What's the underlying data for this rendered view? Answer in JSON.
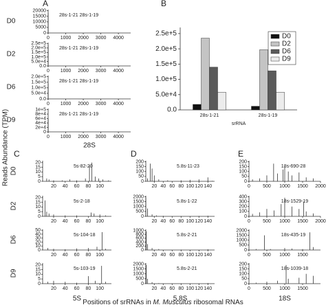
{
  "figure": {
    "y_label": "Reads Abundance (TPM)",
    "x_label_prefix": "Positions of srRNAs in ",
    "x_label_italic": "M. Musculus",
    "x_label_suffix": " ribosomal RNAs"
  },
  "rows": [
    "D0",
    "D2",
    "D6",
    "D9"
  ],
  "chart_data": [
    {
      "type": "spike",
      "panel": "A",
      "xlabel": "28S",
      "xlim": [
        0,
        4700
      ],
      "panels": [
        {
          "annotation": "28s-1-21 28s-1-19",
          "ylim": [
            0,
            21000
          ],
          "yticks": [
            0,
            5000,
            10000,
            15000,
            20000
          ],
          "xticks": [
            0,
            1000,
            2000,
            3000,
            4000
          ],
          "x": [
            1,
            2
          ],
          "values": [
            18000,
            12000
          ]
        },
        {
          "annotation": "28s-1-21 28s-1-19",
          "ylim": [
            0,
            260000
          ],
          "yticks": [
            {
              "value": 0,
              "label": "0.0"
            },
            {
              "value": 50000,
              "label": "5.0e+4"
            },
            {
              "value": 100000,
              "label": "1.0e+5"
            },
            {
              "value": 150000,
              "label": "1.5e+5"
            },
            {
              "value": 200000,
              "label": "2.0e+5"
            },
            {
              "value": 250000,
              "label": "2.5e+5"
            }
          ],
          "xticks": [
            0,
            1000,
            2000,
            3000,
            4000
          ],
          "x": [
            1,
            2
          ],
          "values": [
            235000,
            197000
          ]
        },
        {
          "annotation": "28s-1-21 28s-1-19",
          "ylim": [
            0,
            210000
          ],
          "yticks": [
            {
              "value": 0,
              "label": "0.0"
            },
            {
              "value": 50000,
              "label": "5.0e+4"
            },
            {
              "value": 100000,
              "label": "1.0e+5"
            },
            {
              "value": 150000,
              "label": "1.5e+5"
            },
            {
              "value": 200000,
              "label": "2.0e+5"
            }
          ],
          "xticks": [
            0,
            1000,
            2000,
            3000,
            4000
          ],
          "x": [
            1,
            2
          ],
          "values": [
            140000,
            128000
          ]
        },
        {
          "annotation": "28s-1-21 28s-1-19",
          "ylim": [
            0,
            105000
          ],
          "yticks": [
            0,
            {
              "value": 20000,
              "label": "2e+4"
            },
            {
              "value": 40000,
              "label": "4e+4"
            },
            {
              "value": 60000,
              "label": "6e+4"
            },
            {
              "value": 80000,
              "label": "8e+4"
            },
            {
              "value": 100000,
              "label": "1e+5"
            }
          ],
          "xticks": [
            0,
            1000,
            2000,
            3000,
            4000
          ],
          "x": [
            1,
            2
          ],
          "values": [
            58000,
            58000
          ]
        }
      ]
    },
    {
      "type": "bar",
      "panel": "B",
      "xlabel": "srRNA",
      "categories": [
        "28s-1-21",
        "28s-1-19"
      ],
      "series": [
        {
          "name": "D0",
          "color": "#111111",
          "values": [
            18000,
            12000
          ]
        },
        {
          "name": "D2",
          "color": "#c4c4c4",
          "values": [
            235000,
            197000
          ]
        },
        {
          "name": "D6",
          "color": "#5a5a5a",
          "values": [
            140000,
            128000
          ]
        },
        {
          "name": "D9",
          "color": "#ececec",
          "values": [
            58000,
            58000
          ]
        }
      ],
      "ylim": [
        0,
        270000
      ],
      "yticks": [
        {
          "value": 0,
          "label": "0.0"
        },
        {
          "value": 50000,
          "label": "5.0e+4"
        },
        {
          "value": 100000,
          "label": "1.0e+5"
        },
        {
          "value": 150000,
          "label": "1.5e+5"
        },
        {
          "value": 200000,
          "label": "2.0e+5"
        },
        {
          "value": 250000,
          "label": "2.5e+5"
        }
      ],
      "legend": "top-right"
    },
    {
      "type": "spike",
      "panel": "C",
      "xlabel": "5S",
      "xlim": [
        1,
        120
      ],
      "panels": [
        {
          "annotation": "5s-82-20",
          "ylim": [
            0,
            22
          ],
          "yticks": [
            0,
            5,
            10,
            15,
            20
          ],
          "xticks": [
            20,
            40,
            60,
            80,
            100
          ],
          "x": [
            8,
            12,
            20,
            35,
            48,
            60,
            75,
            82,
            86,
            92,
            98,
            105,
            115
          ],
          "values": [
            3,
            2,
            1,
            1,
            2,
            1,
            3,
            17,
            20,
            5,
            3,
            2,
            1
          ]
        },
        {
          "annotation": "5s-2-18",
          "ylim": [
            0,
            22
          ],
          "yticks": [
            0,
            5,
            10,
            15,
            20
          ],
          "xticks": [
            20,
            40,
            60,
            80,
            100
          ],
          "x": [
            5,
            8,
            12,
            20,
            40,
            60,
            85,
            90,
            100,
            110
          ],
          "values": [
            17,
            5,
            3,
            2,
            1,
            1,
            4,
            3,
            2,
            1
          ]
        },
        {
          "annotation": "5s-104-18",
          "ylim": [
            0,
            52
          ],
          "yticks": [
            0,
            10,
            20,
            30,
            40,
            50
          ],
          "xticks": [
            20,
            40,
            60,
            80,
            100
          ],
          "x": [
            10,
            20,
            40,
            60,
            80,
            95,
            104,
            110
          ],
          "values": [
            5,
            3,
            2,
            4,
            5,
            8,
            45,
            3
          ]
        },
        {
          "annotation": "5s-103-19",
          "ylim": [
            0,
            22
          ],
          "yticks": [
            0,
            5,
            10,
            15,
            20
          ],
          "xticks": [
            20,
            40,
            60,
            80,
            100
          ],
          "x": [
            10,
            20,
            40,
            60,
            80,
            92,
            103,
            110
          ],
          "values": [
            2,
            3,
            2,
            1,
            8,
            3,
            19,
            2
          ]
        }
      ]
    },
    {
      "type": "spike",
      "panel": "D",
      "xlabel": "5.8S",
      "xlim": [
        1,
        155
      ],
      "panels": [
        {
          "annotation": "5.8s-11-23",
          "ylim": [
            0,
            210
          ],
          "yticks": [
            0,
            50,
            100,
            150,
            200
          ],
          "xticks": [
            20,
            40,
            60,
            80,
            100,
            120,
            140
          ],
          "x": [
            5,
            11,
            15,
            20,
            30,
            50,
            80,
            100,
            120,
            140,
            150
          ],
          "values": [
            30,
            180,
            130,
            60,
            20,
            10,
            10,
            15,
            20,
            40,
            5
          ]
        },
        {
          "annotation": "5.8s-1-22",
          "ylim": [
            0,
            2100
          ],
          "yticks": [
            0,
            500,
            1000,
            1500,
            2000
          ],
          "xticks": [
            20,
            40,
            60,
            80,
            100,
            120,
            140
          ],
          "x": [
            1,
            5,
            15,
            25,
            40,
            80,
            120,
            140
          ],
          "values": [
            1900,
            800,
            200,
            100,
            50,
            30,
            40,
            60
          ]
        },
        {
          "annotation": "5.8s-2-21",
          "ylim": [
            0,
            1050
          ],
          "yticks": [
            0,
            200,
            400,
            600,
            800,
            1000
          ],
          "xticks": [
            20,
            40,
            60,
            80,
            100,
            120,
            140
          ],
          "x": [
            2,
            5,
            15,
            30,
            80,
            140
          ],
          "values": [
            950,
            300,
            100,
            50,
            20,
            40
          ]
        },
        {
          "annotation": "5.8s-2-21",
          "ylim": [
            0,
            2100
          ],
          "yticks": [
            0,
            500,
            1000,
            1500,
            2000
          ],
          "xticks": [
            20,
            40,
            60,
            80,
            100,
            120,
            140
          ],
          "x": [
            2,
            5,
            15,
            30,
            80,
            140
          ],
          "values": [
            1900,
            500,
            150,
            50,
            30,
            60
          ]
        }
      ]
    },
    {
      "type": "spike",
      "panel": "E",
      "xlabel": "18S",
      "xlim": [
        1,
        2000
      ],
      "panels": [
        {
          "annotation": "18s-690-28",
          "ylim": [
            0,
            210
          ],
          "yticks": [
            0,
            50,
            100,
            150,
            200
          ],
          "xticks": [
            0,
            500,
            1000,
            1500,
            2000
          ],
          "x": [
            100,
            300,
            500,
            690,
            800,
            950,
            1000,
            1100,
            1200,
            1400,
            1600,
            1800
          ],
          "values": [
            20,
            30,
            60,
            180,
            80,
            120,
            150,
            100,
            60,
            90,
            40,
            30
          ]
        },
        {
          "annotation": "18s-1529-19",
          "ylim": [
            0,
            420
          ],
          "yticks": [
            0,
            100,
            200,
            300,
            400
          ],
          "xticks": [
            0,
            500,
            1000,
            1500,
            2000
          ],
          "x": [
            100,
            300,
            500,
            700,
            900,
            1000,
            1200,
            1400,
            1529,
            1600,
            1800
          ],
          "values": [
            50,
            80,
            150,
            120,
            250,
            380,
            200,
            150,
            300,
            100,
            60
          ]
        },
        {
          "annotation": "18s-435-19",
          "ylim": [
            0,
            2100
          ],
          "yticks": [
            0,
            500,
            1000,
            1500,
            2000
          ],
          "xticks": [
            0,
            500,
            1000,
            1500
          ],
          "x": [
            200,
            435,
            600,
            1000,
            1200,
            1500,
            1700,
            1800
          ],
          "values": [
            100,
            1500,
            100,
            200,
            150,
            100,
            1800,
            300
          ]
        },
        {
          "annotation": "18s-1039-18",
          "ylim": [
            0,
            210
          ],
          "yticks": [
            0,
            50,
            100,
            150,
            200
          ],
          "xticks": [
            0,
            500,
            1000,
            1500
          ],
          "x": [
            200,
            500,
            800,
            1039,
            1100,
            1400,
            1600,
            1800
          ],
          "values": [
            10,
            20,
            30,
            190,
            50,
            60,
            100,
            80
          ]
        }
      ]
    }
  ]
}
